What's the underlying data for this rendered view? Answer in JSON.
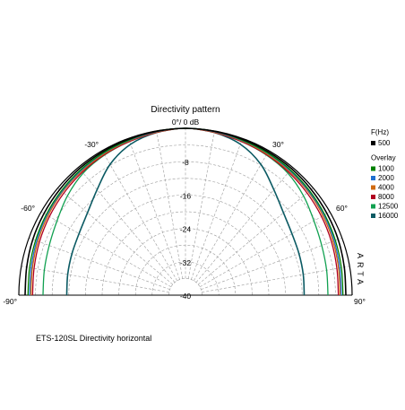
{
  "chart_data": {
    "type": "polar-half",
    "title": "Directivity pattern",
    "caption": "ETS-120SL Directivity horizontal",
    "watermark": "ARTA",
    "radial_axis": {
      "min": -40,
      "max": 0,
      "ticks": [
        -8,
        -16,
        -24,
        -32,
        -40
      ],
      "tick_labels": [
        "-8",
        "-16",
        "-24",
        "-32",
        "-40"
      ],
      "top_label": "0°/ 0 dB"
    },
    "angle_axis": {
      "range_deg": [
        -90,
        90
      ],
      "tick_labels": [
        {
          "angle": -90,
          "text": "-90°"
        },
        {
          "angle": -60,
          "text": "-60°"
        },
        {
          "angle": -30,
          "text": "-30°"
        },
        {
          "angle": 30,
          "text": "30°"
        },
        {
          "angle": 60,
          "text": "60°"
        },
        {
          "angle": 90,
          "text": "90°"
        }
      ]
    },
    "legend": {
      "header": "F(Hz)",
      "overlay_label": "Overlay",
      "position": "right"
    },
    "angles_deg": [
      -90,
      -80,
      -70,
      -60,
      -50,
      -40,
      -30,
      -20,
      -10,
      0,
      10,
      20,
      30,
      40,
      50,
      60,
      70,
      80,
      90
    ],
    "series": [
      {
        "name": "500",
        "color": "#000000",
        "width": 1.6,
        "legend_group": "main",
        "values": [
          -1.5,
          -1.3,
          -1.0,
          -0.8,
          -0.6,
          -0.4,
          -0.3,
          -0.2,
          -0.1,
          0,
          -0.1,
          -0.2,
          -0.3,
          -0.4,
          -0.6,
          -0.8,
          -1.0,
          -1.3,
          -1.5
        ]
      },
      {
        "name": "1000",
        "color": "#008000",
        "width": 1.3,
        "legend_group": "overlay",
        "values": [
          -2.2,
          -2.0,
          -1.7,
          -1.4,
          -1.1,
          -0.8,
          -0.6,
          -0.4,
          -0.1,
          0,
          -0.1,
          -0.4,
          -0.6,
          -0.8,
          -1.1,
          -1.4,
          -1.7,
          -2.0,
          -2.2
        ]
      },
      {
        "name": "2000",
        "color": "#1f6fd0",
        "width": 1.3,
        "legend_group": "overlay",
        "values": [
          -2.6,
          -2.4,
          -2.0,
          -1.6,
          -1.3,
          -1.0,
          -0.7,
          -0.5,
          -0.2,
          0,
          -0.2,
          -0.5,
          -0.7,
          -1.0,
          -1.3,
          -1.6,
          -2.0,
          -2.4,
          -2.6
        ]
      },
      {
        "name": "4000",
        "color": "#d06a10",
        "width": 1.3,
        "legend_group": "overlay",
        "values": [
          -2.9,
          -2.7,
          -2.3,
          -1.9,
          -1.5,
          -1.2,
          -0.9,
          -0.6,
          -0.3,
          0,
          -0.3,
          -0.6,
          -0.9,
          -1.2,
          -1.5,
          -1.9,
          -2.3,
          -2.7,
          -2.9
        ]
      },
      {
        "name": "8000",
        "color": "#b00020",
        "width": 1.3,
        "legend_group": "overlay",
        "values": [
          -3.3,
          -3.1,
          -2.7,
          -2.3,
          -1.9,
          -1.5,
          -1.1,
          -0.8,
          -0.4,
          0,
          -0.4,
          -0.8,
          -1.1,
          -1.5,
          -1.9,
          -2.3,
          -2.7,
          -3.1,
          -3.3
        ]
      },
      {
        "name": "12500",
        "color": "#10a050",
        "width": 1.3,
        "legend_group": "overlay",
        "values": [
          -5.8,
          -5.6,
          -5.2,
          -4.4,
          -3.0,
          -1.8,
          -1.2,
          -0.8,
          -0.4,
          0,
          -0.4,
          -0.8,
          -1.2,
          -1.8,
          -3.0,
          -4.4,
          -5.2,
          -5.6,
          -5.8
        ]
      },
      {
        "name": "16000",
        "color": "#0b5a63",
        "width": 1.6,
        "legend_group": "overlay",
        "values": [
          -11.5,
          -11.3,
          -11.0,
          -10.5,
          -9.3,
          -7.0,
          -3.8,
          -1.5,
          -0.4,
          0,
          -0.4,
          -1.5,
          -3.8,
          -7.0,
          -9.3,
          -10.5,
          -11.0,
          -11.3,
          -11.5
        ]
      }
    ]
  }
}
